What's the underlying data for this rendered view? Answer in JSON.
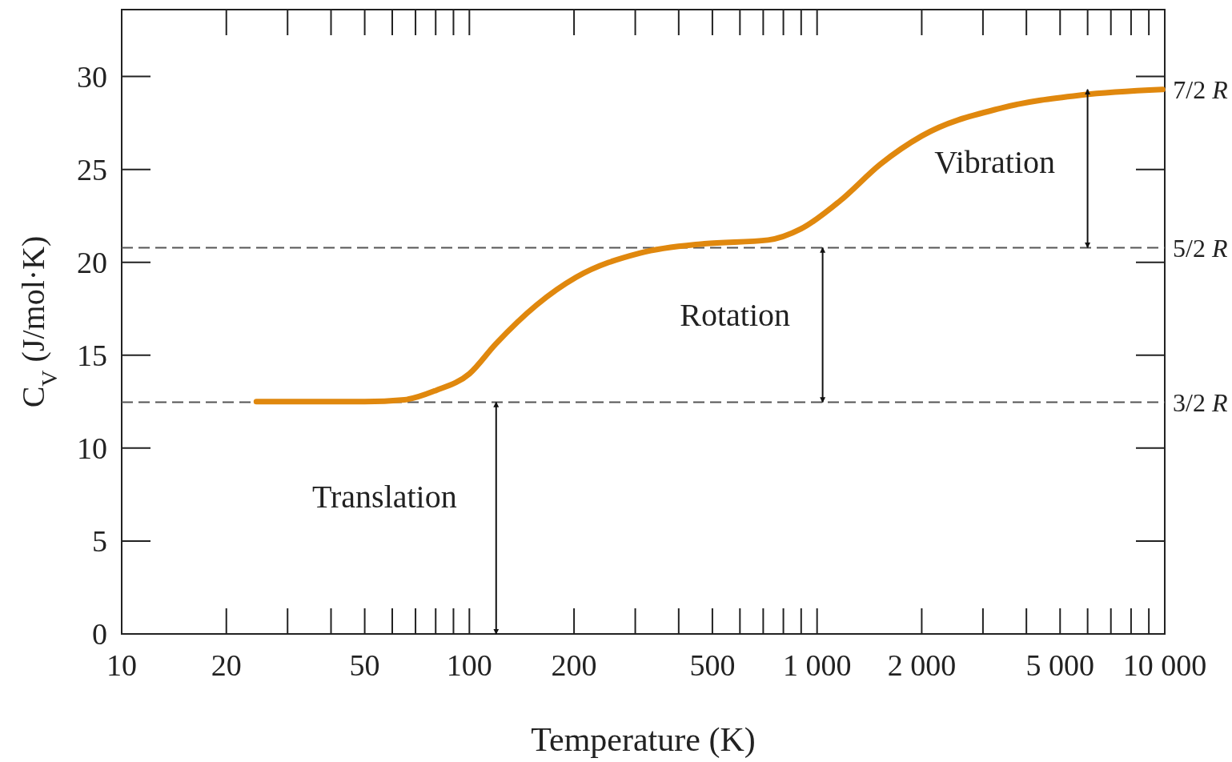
{
  "chart_data": {
    "type": "line",
    "xlabel": "Temperature (K)",
    "ylabel": "C$_{V}$ (J/mol·K)",
    "x": [
      24.4,
      35,
      50,
      65,
      80,
      100,
      119,
      156,
      203,
      310,
      474,
      723,
      899,
      1163,
      1525,
      2000,
      3380,
      5750,
      9860
    ],
    "series": [
      {
        "color": "#e0880e",
        "values": [
          12.5,
          12.5,
          12.5,
          12.6,
          13.1,
          14.0,
          15.6,
          17.7,
          19.2,
          20.5,
          21.0,
          21.2,
          21.8,
          23.3,
          25.3,
          26.8,
          28.3,
          29.0,
          29.3
        ]
      }
    ],
    "log": "x",
    "xlim": [
      10,
      10000
    ],
    "ylim": [
      0,
      33.6
    ],
    "xticks": [
      10,
      20,
      50,
      100,
      200,
      500,
      {
        "value": 1000,
        "label": "1 000"
      },
      {
        "value": 2000,
        "label": "2 000"
      },
      {
        "value": 5000,
        "label": "5 000"
      },
      {
        "value": 10000,
        "label": "10 000"
      }
    ],
    "yticks": [
      0,
      5,
      10,
      15,
      20,
      25,
      30
    ],
    "ref_lines": [
      {
        "axis": "y",
        "value": 12.47,
        "label": "3/2 R",
        "line_style": "dashed",
        "color": "#555555"
      },
      {
        "axis": "y",
        "value": 20.79,
        "label": "5/2 R",
        "line_style": "dashed",
        "color": "#555555"
      }
    ],
    "annotations": [
      "Translation",
      "Rotation",
      "Vibration",
      {
        "text": "7/2 R",
        "x": 9860,
        "y": 29.3
      }
    ],
    "grid": false,
    "marker": "none",
    "line_style": "solid"
  }
}
